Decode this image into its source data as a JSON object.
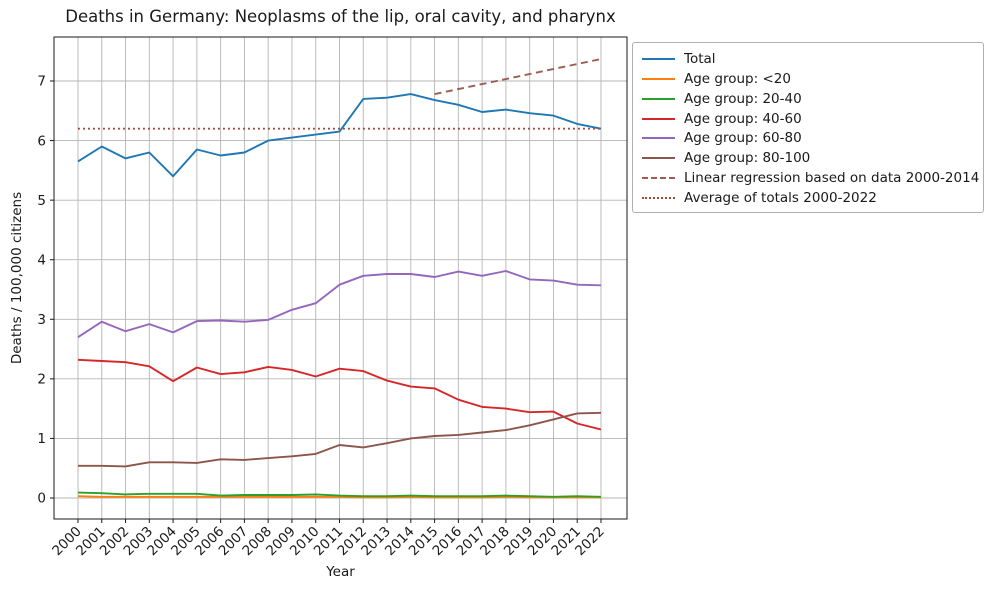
{
  "title": "Deaths in Germany: Neoplasms of the lip, oral cavity, and pharynx",
  "chart_data": {
    "type": "line",
    "title": "Deaths in Germany: Neoplasms of the lip, oral cavity, and pharynx",
    "xlabel": "Year",
    "ylabel": "Deaths / 100,000 citizens",
    "x": [
      2000,
      2001,
      2002,
      2003,
      2004,
      2005,
      2006,
      2007,
      2008,
      2009,
      2010,
      2011,
      2012,
      2013,
      2014,
      2015,
      2016,
      2017,
      2018,
      2019,
      2020,
      2021,
      2022
    ],
    "xlim": [
      1999,
      2023.1
    ],
    "ylim": [
      -0.35,
      7.74
    ],
    "yticks": [
      0,
      1,
      2,
      3,
      4,
      5,
      6,
      7
    ],
    "grid": true,
    "grid_color": "#b5b5b5",
    "legend_position": "upper-right-outside",
    "average_of_totals": 6.2,
    "series": [
      {
        "name": "Total",
        "color": "#1f77b4",
        "dash": "solid",
        "values": [
          5.65,
          5.9,
          5.7,
          5.8,
          5.4,
          5.85,
          5.75,
          5.8,
          6.0,
          6.05,
          6.1,
          6.15,
          6.7,
          6.72,
          6.78,
          6.68,
          6.6,
          6.48,
          6.52,
          6.46,
          6.42,
          6.28,
          6.2
        ]
      },
      {
        "name": "Age group: <20",
        "color": "#ff7f0e",
        "dash": "solid",
        "values": [
          0.03,
          0.02,
          0.02,
          0.02,
          0.02,
          0.02,
          0.02,
          0.02,
          0.02,
          0.02,
          0.02,
          0.02,
          0.01,
          0.01,
          0.02,
          0.01,
          0.01,
          0.01,
          0.02,
          0.01,
          0.01,
          0.01,
          0.01
        ]
      },
      {
        "name": "Age group: 20-40",
        "color": "#2ca02c",
        "dash": "solid",
        "values": [
          0.09,
          0.08,
          0.06,
          0.07,
          0.07,
          0.07,
          0.04,
          0.05,
          0.05,
          0.05,
          0.06,
          0.04,
          0.03,
          0.03,
          0.04,
          0.03,
          0.03,
          0.03,
          0.04,
          0.03,
          0.02,
          0.03,
          0.02
        ]
      },
      {
        "name": "Age group: 40-60",
        "color": "#d62728",
        "dash": "solid",
        "values": [
          2.32,
          2.3,
          2.28,
          2.21,
          1.96,
          2.19,
          2.08,
          2.11,
          2.2,
          2.15,
          2.04,
          2.17,
          2.13,
          1.97,
          1.87,
          1.84,
          1.65,
          1.53,
          1.5,
          1.44,
          1.45,
          1.25,
          1.15
        ]
      },
      {
        "name": "Age group: 60-80",
        "color": "#9467bd",
        "dash": "solid",
        "values": [
          2.7,
          2.96,
          2.8,
          2.92,
          2.78,
          2.97,
          2.98,
          2.96,
          2.99,
          3.16,
          3.27,
          3.58,
          3.73,
          3.76,
          3.76,
          3.71,
          3.8,
          3.73,
          3.81,
          3.67,
          3.65,
          3.58,
          3.57
        ]
      },
      {
        "name": "Age group: 80-100",
        "color": "#8c564b",
        "dash": "solid",
        "values": [
          0.54,
          0.54,
          0.53,
          0.6,
          0.6,
          0.59,
          0.65,
          0.64,
          0.67,
          0.7,
          0.74,
          0.89,
          0.85,
          0.92,
          1.0,
          1.04,
          1.06,
          1.1,
          1.14,
          1.22,
          1.32,
          1.42,
          1.43
        ]
      },
      {
        "name": "Linear regression based on data 2000-2014",
        "color": "#9b5d51",
        "dash": "dashed",
        "x": [
          2015,
          2022
        ],
        "values": [
          6.78,
          7.37
        ]
      },
      {
        "name": "Average of totals 2000-2022",
        "color": "#a2493a",
        "dash": "dotted",
        "x": [
          2000,
          2022
        ],
        "values": [
          6.2,
          6.2
        ]
      }
    ]
  }
}
